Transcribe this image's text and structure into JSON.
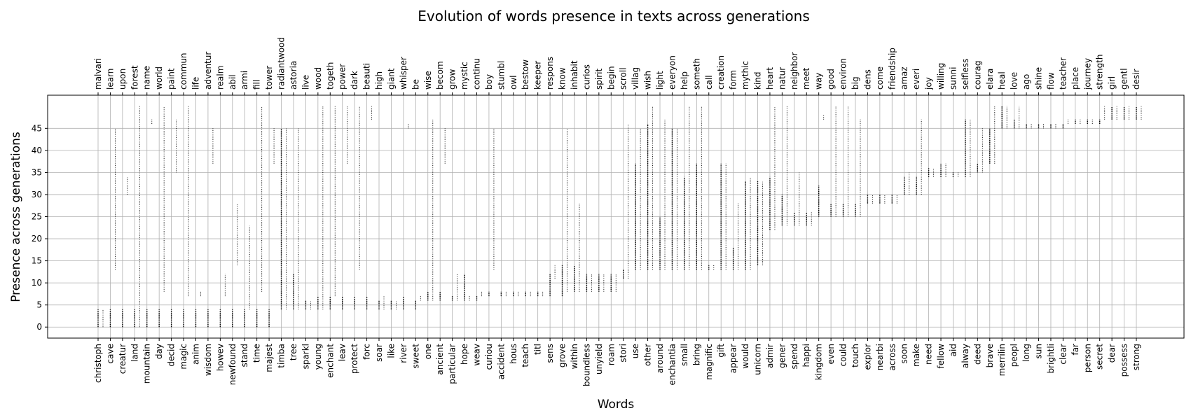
{
  "chart_data": {
    "type": "scatter",
    "title": "Evolution of words presence in texts across generations",
    "xlabel": "Words",
    "ylabel": "Presence across generations",
    "yticks": [
      0,
      5,
      10,
      15,
      20,
      25,
      30,
      35,
      40,
      45
    ],
    "ylim": [
      -2.5,
      52.5
    ],
    "grid": true,
    "words_bottom": [
      "christoph",
      "cave",
      "creatur",
      "land",
      "mountain",
      "day",
      "decid",
      "magic",
      "anim",
      "wisdom",
      "howev",
      "newfound",
      "stand",
      "time",
      "majest",
      "timba",
      "tree",
      "sparkl",
      "young",
      "enchant",
      "leav",
      "protect",
      "forc",
      "soar",
      "like",
      "river",
      "sweet",
      "one",
      "ancient",
      "particular",
      "hope",
      "weav",
      "curiou",
      "accident",
      "hous",
      "teach",
      "titl",
      "sens",
      "grove",
      "within",
      "boundless",
      "unyield",
      "roam",
      "stori",
      "use",
      "other",
      "around",
      "enchantia",
      "small",
      "bring",
      "magnific",
      "gift",
      "appear",
      "would",
      "unicorn",
      "admir",
      "gener",
      "spend",
      "happi",
      "kingdom",
      "even",
      "could",
      "touch",
      "explor",
      "nearbi",
      "across",
      "soon",
      "make",
      "need",
      "fellow",
      "aid",
      "alway",
      "deed",
      "brave",
      "merrilin",
      "peopl",
      "long",
      "sun",
      "brightli",
      "clear",
      "far",
      "person",
      "secret",
      "dear",
      "possess",
      "strong"
    ],
    "words_top": [
      "malvari",
      "learn",
      "upon",
      "forest",
      "name",
      "world",
      "paint",
      "commun",
      "life",
      "adventur",
      "realm",
      "abil",
      "armi",
      "fill",
      "tower",
      "radiantwood",
      "astoria",
      "live",
      "wood",
      "togeth",
      "power",
      "dark",
      "beauti",
      "high",
      "giant",
      "whisper",
      "be",
      "wise",
      "becom",
      "grow",
      "mystic",
      "continu",
      "boy",
      "stumbl",
      "owl",
      "bestow",
      "keeper",
      "respons",
      "know",
      "inhabit",
      "curios",
      "spirit",
      "begin",
      "scroll",
      "villag",
      "wish",
      "light",
      "everyon",
      "help",
      "someth",
      "call",
      "creation",
      "form",
      "mythic",
      "kind",
      "heart",
      "natur",
      "neighbor",
      "meet",
      "way",
      "good",
      "environ",
      "big",
      "dens",
      "come",
      "friendship",
      "amaz",
      "everi",
      "joy",
      "willing",
      "sunni",
      "selfless",
      "courag",
      "elara",
      "heal",
      "love",
      "ago",
      "shine",
      "flow",
      "teacher",
      "place",
      "journey",
      "strength",
      "girl",
      "gentl",
      "desir"
    ],
    "presence_ranges": [
      [
        [
          0,
          4
        ]
      ],
      [
        [
          0,
          4
        ]
      ],
      [
        [
          0,
          4
        ]
      ],
      [
        [
          0,
          4
        ]
      ],
      [
        [
          0,
          4
        ]
      ],
      [
        [
          0,
          4
        ]
      ],
      [
        [
          0,
          4
        ]
      ],
      [
        [
          0,
          4
        ]
      ],
      [
        [
          0,
          4
        ]
      ],
      [
        [
          0,
          4
        ]
      ],
      [
        [
          0,
          4
        ]
      ],
      [
        [
          0,
          4
        ]
      ],
      [
        [
          0,
          4
        ]
      ],
      [
        [
          0,
          4
        ]
      ],
      [
        [
          0,
          4
        ]
      ],
      [
        [
          4,
          45
        ]
      ],
      [
        [
          4,
          12
        ]
      ],
      [
        [
          4,
          6
        ]
      ],
      [
        [
          4,
          7
        ]
      ],
      [
        [
          4,
          7
        ]
      ],
      [
        [
          4,
          7
        ]
      ],
      [
        [
          4,
          7
        ]
      ],
      [
        [
          4,
          7
        ]
      ],
      [
        [
          4,
          6
        ]
      ],
      [
        [
          4,
          6
        ]
      ],
      [
        [
          4,
          7
        ]
      ],
      [
        [
          4,
          6
        ]
      ],
      [
        [
          6,
          8
        ]
      ],
      [
        [
          6,
          8
        ]
      ],
      [
        [
          6,
          7
        ]
      ],
      [
        [
          6,
          12
        ]
      ],
      [
        [
          6,
          7
        ]
      ],
      [
        [
          7,
          8
        ]
      ],
      [
        [
          7,
          8
        ]
      ],
      [
        [
          7,
          8
        ]
      ],
      [
        [
          7,
          8
        ]
      ],
      [
        [
          7,
          8
        ]
      ],
      [
        [
          7,
          12
        ]
      ],
      [
        [
          7,
          14
        ]
      ],
      [
        [
          8,
          14
        ]
      ],
      [
        [
          8,
          12
        ]
      ],
      [
        [
          8,
          12
        ]
      ],
      [
        [
          8,
          12
        ]
      ],
      [
        [
          11,
          13
        ]
      ],
      [
        [
          13,
          37
        ]
      ],
      [
        [
          13,
          46
        ]
      ],
      [
        [
          13,
          25
        ]
      ],
      [
        [
          13,
          45
        ]
      ],
      [
        [
          13,
          34
        ]
      ],
      [
        [
          13,
          37
        ]
      ],
      [
        [
          13,
          14
        ]
      ],
      [
        [
          13,
          37
        ]
      ],
      [
        [
          13,
          18
        ]
      ],
      [
        [
          13,
          33
        ]
      ],
      [
        [
          14,
          33
        ]
      ],
      [
        [
          22,
          34
        ]
      ],
      [
        [
          23,
          30
        ]
      ],
      [
        [
          23,
          26
        ]
      ],
      [
        [
          23,
          26
        ]
      ],
      [
        [
          25,
          32
        ]
      ],
      [
        [
          25,
          28
        ]
      ],
      [
        [
          25,
          28
        ]
      ],
      [
        [
          25,
          28
        ]
      ],
      [
        [
          28,
          30
        ]
      ],
      [
        [
          28,
          30
        ]
      ],
      [
        [
          28,
          30
        ]
      ],
      [
        [
          30,
          34
        ]
      ],
      [
        [
          30,
          34
        ]
      ],
      [
        [
          34,
          36
        ]
      ],
      [
        [
          34,
          37
        ]
      ],
      [
        [
          34,
          35
        ]
      ],
      [
        [
          34,
          47
        ]
      ],
      [
        [
          35,
          37
        ]
      ],
      [
        [
          37,
          45
        ]
      ],
      [
        [
          45,
          50
        ]
      ],
      [
        [
          45,
          47
        ]
      ],
      [
        [
          45,
          46
        ]
      ],
      [
        [
          45,
          46
        ]
      ],
      [
        [
          45,
          46
        ]
      ],
      [
        [
          45,
          46
        ]
      ],
      [
        [
          46,
          47
        ]
      ],
      [
        [
          46,
          47
        ]
      ],
      [
        [
          46,
          47
        ]
      ],
      [
        [
          47,
          50
        ]
      ],
      [
        [
          47,
          50
        ]
      ],
      [
        [
          47,
          50
        ]
      ]
    ],
    "presence_ranges_top": [
      [
        [
          0,
          4
        ]
      ],
      [
        [
          13,
          45
        ]
      ],
      [
        [
          30,
          34
        ]
      ],
      [
        [
          0,
          50
        ]
      ],
      [
        [
          46,
          47
        ]
      ],
      [
        [
          8,
          50
        ]
      ],
      [
        [
          35,
          47
        ]
      ],
      [
        [
          7,
          50
        ]
      ],
      [
        [
          7,
          8
        ]
      ],
      [
        [
          37,
          45
        ]
      ],
      [
        [
          7,
          12
        ]
      ],
      [
        [
          14,
          28
        ]
      ],
      [
        [
          4,
          23
        ]
      ],
      [
        [
          8,
          50
        ]
      ],
      [
        [
          37,
          45
        ]
      ],
      [
        [
          4,
          45
        ]
      ],
      [
        [
          4,
          45
        ]
      ],
      [
        [
          4,
          6
        ]
      ],
      [
        [
          4,
          50
        ]
      ],
      [
        [
          7,
          50
        ]
      ],
      [
        [
          37,
          50
        ]
      ],
      [
        [
          13,
          50
        ]
      ],
      [
        [
          47,
          50
        ]
      ],
      [
        [
          4,
          7
        ]
      ],
      [
        [
          4,
          6
        ]
      ],
      [
        [
          45,
          46
        ]
      ],
      [
        [
          6,
          7
        ]
      ],
      [
        [
          6,
          47
        ]
      ],
      [
        [
          37,
          45
        ]
      ],
      [
        [
          6,
          12
        ]
      ],
      [
        [
          6,
          7
        ]
      ],
      [
        [
          7,
          8
        ]
      ],
      [
        [
          13,
          45
        ]
      ],
      [
        [
          7,
          8
        ]
      ],
      [
        [
          7,
          8
        ]
      ],
      [
        [
          7,
          8
        ]
      ],
      [
        [
          7,
          8
        ]
      ],
      [
        [
          11,
          14
        ]
      ],
      [
        [
          8,
          45
        ]
      ],
      [
        [
          8,
          28
        ]
      ],
      [
        [
          8,
          12
        ]
      ],
      [
        [
          8,
          12
        ]
      ],
      [
        [
          8,
          12
        ]
      ],
      [
        [
          11,
          46
        ]
      ],
      [
        [
          13,
          45
        ]
      ],
      [
        [
          13,
          50
        ]
      ],
      [
        [
          13,
          47
        ]
      ],
      [
        [
          13,
          45
        ]
      ],
      [
        [
          13,
          50
        ]
      ],
      [
        [
          13,
          50
        ]
      ],
      [
        [
          13,
          14
        ]
      ],
      [
        [
          13,
          37
        ]
      ],
      [
        [
          13,
          28
        ]
      ],
      [
        [
          13,
          34
        ]
      ],
      [
        [
          14,
          33
        ]
      ],
      [
        [
          22,
          50
        ]
      ],
      [
        [
          23,
          50
        ]
      ],
      [
        [
          23,
          35
        ]
      ],
      [
        [
          23,
          26
        ]
      ],
      [
        [
          47,
          48
        ]
      ],
      [
        [
          25,
          50
        ]
      ],
      [
        [
          25,
          50
        ]
      ],
      [
        [
          25,
          47
        ]
      ],
      [
        [
          28,
          30
        ]
      ],
      [
        [
          28,
          30
        ]
      ],
      [
        [
          28,
          30
        ]
      ],
      [
        [
          30,
          35
        ]
      ],
      [
        [
          30,
          47
        ]
      ],
      [
        [
          34,
          36
        ]
      ],
      [
        [
          34,
          37
        ]
      ],
      [
        [
          34,
          35
        ]
      ],
      [
        [
          34,
          47
        ]
      ],
      [
        [
          35,
          45
        ]
      ],
      [
        [
          37,
          50
        ]
      ],
      [
        [
          45,
          50
        ]
      ],
      [
        [
          45,
          50
        ]
      ],
      [
        [
          45,
          46
        ]
      ],
      [
        [
          45,
          46
        ]
      ],
      [
        [
          45,
          46
        ]
      ],
      [
        [
          46,
          47
        ]
      ],
      [
        [
          46,
          47
        ]
      ],
      [
        [
          46,
          47
        ]
      ],
      [
        [
          47,
          50
        ]
      ],
      [
        [
          47,
          50
        ]
      ],
      [
        [
          47,
          50
        ]
      ],
      [
        [
          47,
          50
        ]
      ]
    ]
  }
}
